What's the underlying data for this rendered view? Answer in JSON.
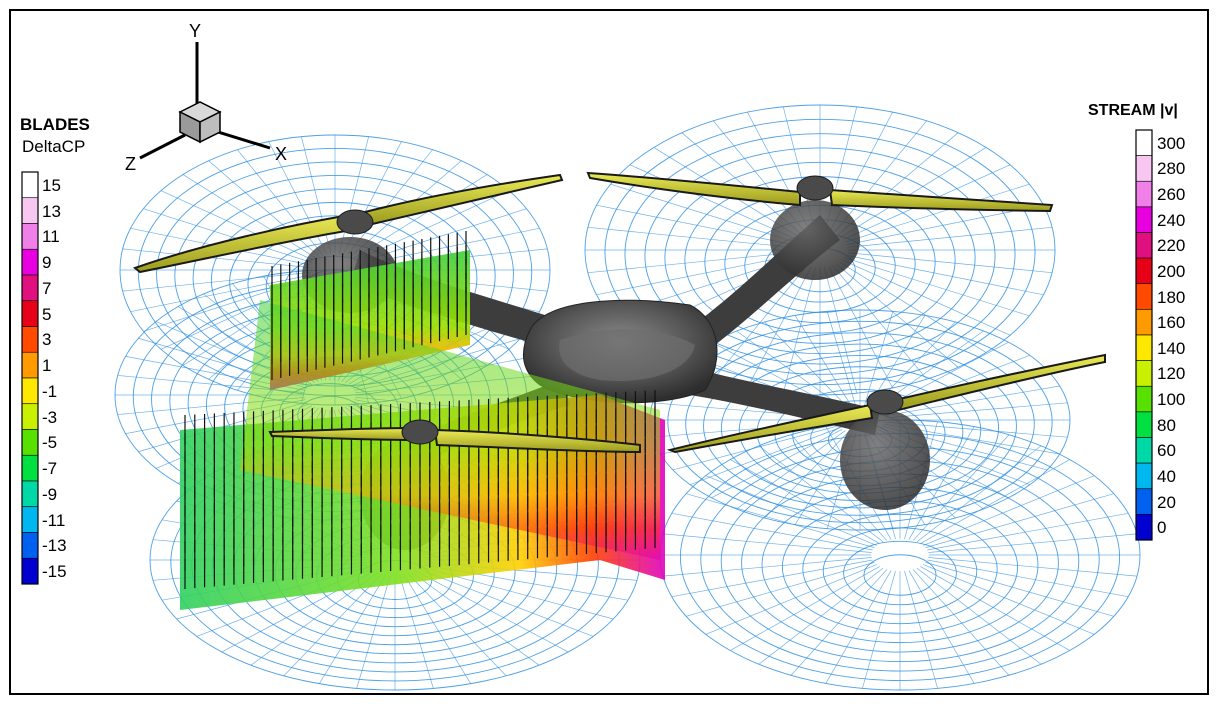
{
  "triad": {
    "y": "Y",
    "x": "X",
    "z": "Z"
  },
  "blades_legend": {
    "title": "BLADES",
    "variable": "DeltaCP",
    "levels": [
      "15",
      "13",
      "11",
      "9",
      "7",
      "5",
      "3",
      "1",
      "-1",
      "-3",
      "-5",
      "-7",
      "-9",
      "-11",
      "-13",
      "-15"
    ],
    "colors": [
      "#ffffff",
      "#f7c7f2",
      "#ef80e8",
      "#e800e0",
      "#e0107e",
      "#e80018",
      "#ff4a00",
      "#ff9a00",
      "#ffe800",
      "#c8f000",
      "#58e000",
      "#00e040",
      "#00d8a8",
      "#00b8f0",
      "#0060f0",
      "#0000d0"
    ]
  },
  "stream_legend": {
    "title": "STREAM |v|",
    "levels": [
      "300",
      "280",
      "260",
      "240",
      "220",
      "200",
      "180",
      "160",
      "140",
      "120",
      "100",
      "80",
      "60",
      "40",
      "20",
      "0"
    ],
    "colors": [
      "#ffffff",
      "#f7c7f2",
      "#ef80e8",
      "#e800e0",
      "#e0107e",
      "#e80018",
      "#ff4a00",
      "#ff9a00",
      "#ffe800",
      "#c8f000",
      "#58e000",
      "#00e040",
      "#00d8a8",
      "#00b8f0",
      "#0060f0",
      "#0000d0"
    ]
  },
  "scene": {
    "wire_color": "#2f8fe0",
    "body_color": "#4a4a4a",
    "blade_color": "#d6d631"
  }
}
